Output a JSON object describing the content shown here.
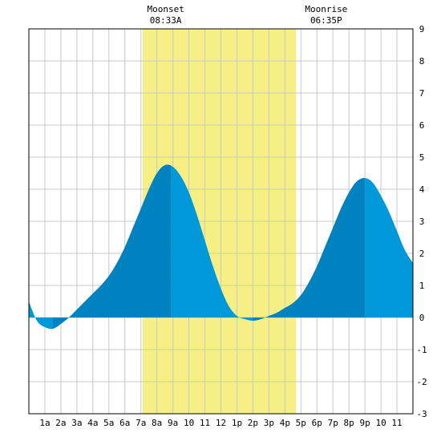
{
  "chart_data": {
    "type": "area",
    "title": "",
    "xlabel": "",
    "ylabel": "",
    "x_ticks": [
      "1a",
      "2a",
      "3a",
      "4a",
      "5a",
      "6a",
      "7a",
      "8a",
      "9a",
      "10",
      "11",
      "12",
      "1p",
      "2p",
      "3p",
      "4p",
      "5p",
      "6p",
      "7p",
      "8p",
      "9p",
      "10",
      "11"
    ],
    "y_ticks": [
      "-3",
      "-2",
      "-1",
      "0",
      "1",
      "2",
      "3",
      "4",
      "5",
      "6",
      "7",
      "8",
      "9"
    ],
    "xlim": [
      0,
      24
    ],
    "ylim": [
      -3,
      9
    ],
    "grid": true,
    "moon_events": [
      {
        "label": "Moonset",
        "time": "08:33A",
        "hour": 8.55
      },
      {
        "label": "Moonrise",
        "time": "06:35P",
        "hour": 18.58
      }
    ],
    "daylight_band": {
      "start_hour": 7.1,
      "end_hour": 16.7
    },
    "series": [
      {
        "x": [
          0,
          0.5,
          1,
          1.5,
          2,
          2.5,
          3,
          3.5,
          4,
          4.5,
          5,
          5.5,
          6,
          6.5,
          7,
          7.5,
          8,
          8.5,
          9,
          9.5,
          10,
          10.5,
          11,
          11.5,
          12,
          12.5,
          13,
          13.5,
          14,
          14.5,
          15,
          15.5,
          16,
          16.5,
          17,
          17.5,
          18,
          18.5,
          19,
          19.5,
          20,
          20.5,
          21,
          21.5,
          22,
          22.5,
          23,
          23.5,
          24
        ],
        "y": [
          0.5,
          -0.1,
          -0.3,
          -0.35,
          -0.2,
          0.0,
          0.25,
          0.5,
          0.75,
          1.0,
          1.3,
          1.7,
          2.2,
          2.8,
          3.4,
          4.0,
          4.5,
          4.75,
          4.7,
          4.4,
          3.9,
          3.2,
          2.4,
          1.6,
          0.9,
          0.35,
          0.05,
          -0.05,
          -0.1,
          -0.05,
          0.05,
          0.15,
          0.3,
          0.45,
          0.7,
          1.1,
          1.6,
          2.2,
          2.8,
          3.4,
          3.9,
          4.25,
          4.35,
          4.2,
          3.8,
          3.3,
          2.7,
          2.1,
          1.7
        ],
        "extremes": [
          {
            "type": "low",
            "hour": 1.5,
            "value": -0.35
          },
          {
            "type": "high",
            "hour": 8.9,
            "value": 4.75
          },
          {
            "type": "low",
            "hour": 14.0,
            "value": -0.1
          },
          {
            "type": "high",
            "hour": 21.0,
            "value": 4.35
          }
        ]
      }
    ]
  },
  "colors": {
    "background": "#ffffff",
    "grid": "#c8c8c8",
    "daylight": "#f5ef86",
    "tide_dark": "#0082c0",
    "tide_light": "#0098d8",
    "frame": "#000000"
  }
}
